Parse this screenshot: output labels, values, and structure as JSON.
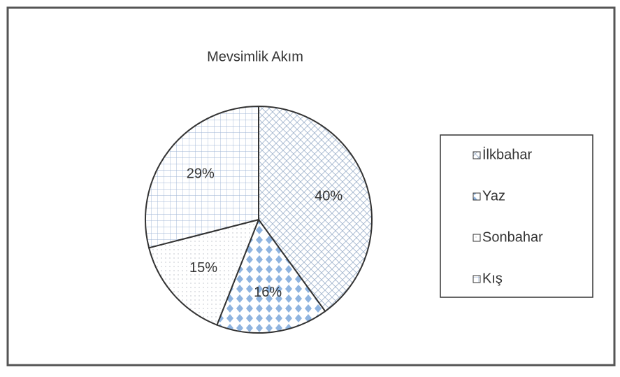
{
  "chart_data": {
    "type": "pie",
    "title": "Mevsimlik Akım",
    "categories": [
      "İlkbahar",
      "Yaz",
      "Sonbahar",
      "Kış"
    ],
    "values": [
      40,
      16,
      15,
      29
    ],
    "value_labels": [
      "40%",
      "16%",
      "15%",
      "29%"
    ],
    "colors": [
      "#9fb3cc",
      "#8fb4e0",
      "#b8bcc4",
      "#9fb5d6"
    ],
    "legend": "right"
  }
}
